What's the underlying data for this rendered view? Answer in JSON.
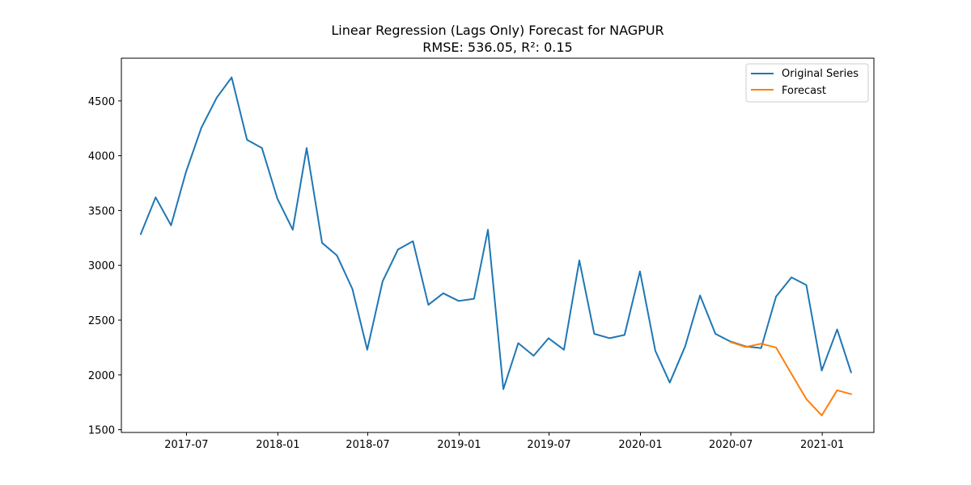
{
  "chart_data": {
    "type": "line",
    "title": "Linear Regression (Lags Only) Forecast for NAGPUR",
    "subtitle": "RMSE: 536.05, R²: 0.15",
    "xlabel": "",
    "ylabel": "",
    "xlim": [
      "2017-02-20",
      "2021-04-15"
    ],
    "ylim": [
      1475,
      4890
    ],
    "y_ticks": [
      1500,
      2000,
      2500,
      3000,
      3500,
      4000,
      4500
    ],
    "x_ticks": [
      {
        "date": "2017-07-01",
        "label": "2017-07"
      },
      {
        "date": "2018-01-01",
        "label": "2018-01"
      },
      {
        "date": "2018-07-01",
        "label": "2018-07"
      },
      {
        "date": "2019-01-01",
        "label": "2019-01"
      },
      {
        "date": "2019-07-01",
        "label": "2019-07"
      },
      {
        "date": "2020-01-01",
        "label": "2020-01"
      },
      {
        "date": "2020-07-01",
        "label": "2020-07"
      },
      {
        "date": "2021-01-01",
        "label": "2021-01"
      }
    ],
    "grid": false,
    "legend_position": "top-right",
    "series": [
      {
        "name": "Original Series",
        "color": "#1f77b4",
        "points": [
          [
            "2017-03-31",
            3285
          ],
          [
            "2017-04-30",
            3620
          ],
          [
            "2017-05-31",
            3365
          ],
          [
            "2017-06-30",
            3850
          ],
          [
            "2017-07-31",
            4255
          ],
          [
            "2017-08-31",
            4530
          ],
          [
            "2017-09-30",
            4715
          ],
          [
            "2017-10-31",
            4145
          ],
          [
            "2017-11-30",
            4070
          ],
          [
            "2017-12-31",
            3610
          ],
          [
            "2018-01-31",
            3325
          ],
          [
            "2018-02-28",
            4070
          ],
          [
            "2018-03-31",
            3205
          ],
          [
            "2018-04-30",
            3090
          ],
          [
            "2018-05-31",
            2785
          ],
          [
            "2018-06-30",
            2230
          ],
          [
            "2018-07-31",
            2855
          ],
          [
            "2018-08-31",
            3145
          ],
          [
            "2018-09-30",
            3220
          ],
          [
            "2018-10-31",
            2640
          ],
          [
            "2018-11-30",
            2745
          ],
          [
            "2018-12-31",
            2675
          ],
          [
            "2019-01-31",
            2695
          ],
          [
            "2019-02-28",
            3325
          ],
          [
            "2019-03-31",
            1870
          ],
          [
            "2019-04-30",
            2290
          ],
          [
            "2019-05-31",
            2175
          ],
          [
            "2019-06-30",
            2335
          ],
          [
            "2019-07-31",
            2230
          ],
          [
            "2019-08-31",
            3045
          ],
          [
            "2019-09-30",
            2375
          ],
          [
            "2019-10-31",
            2335
          ],
          [
            "2019-11-30",
            2365
          ],
          [
            "2019-12-31",
            2945
          ],
          [
            "2020-01-31",
            2220
          ],
          [
            "2020-02-29",
            1930
          ],
          [
            "2020-03-31",
            2260
          ],
          [
            "2020-04-30",
            2725
          ],
          [
            "2020-05-31",
            2375
          ],
          [
            "2020-06-30",
            2305
          ],
          [
            "2020-07-31",
            2260
          ],
          [
            "2020-08-31",
            2245
          ],
          [
            "2020-09-30",
            2715
          ],
          [
            "2020-10-31",
            2890
          ],
          [
            "2020-11-30",
            2820
          ],
          [
            "2020-12-31",
            2040
          ],
          [
            "2021-01-31",
            2415
          ],
          [
            "2021-02-28",
            2025
          ]
        ]
      },
      {
        "name": "Forecast",
        "color": "#ff7f0e",
        "points": [
          [
            "2020-06-30",
            2300
          ],
          [
            "2020-07-31",
            2255
          ],
          [
            "2020-08-31",
            2285
          ],
          [
            "2020-09-30",
            2250
          ],
          [
            "2020-10-31",
            2010
          ],
          [
            "2020-11-30",
            1780
          ],
          [
            "2020-12-31",
            1630
          ],
          [
            "2021-01-31",
            1860
          ],
          [
            "2021-02-28",
            1825
          ]
        ]
      }
    ]
  }
}
